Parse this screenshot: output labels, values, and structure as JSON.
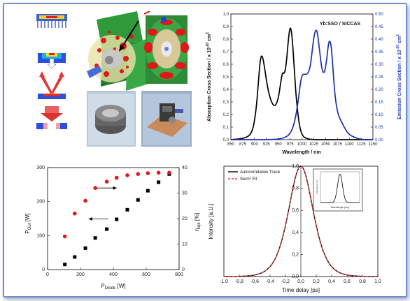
{
  "figure_title": "",
  "spectrum": {
    "label": "Yb:SSO / SICCAS",
    "xlabel": "Wavelength / nm",
    "ylabel_left": "Absorption Cross Section / x 10",
    "ylabel_left_sup": "-20",
    "ylabel_left_unit": " cm",
    "ylabel_left_unit_sup": "2",
    "ylabel_right": "Emission Cross Section / x 10",
    "ylabel_right_sup": "-20",
    "ylabel_right_unit": " cm",
    "ylabel_right_unit_sup": "2"
  },
  "power": {
    "ylabel_left": "P",
    "ylabel_left_sub": "Out",
    "ylabel_left_unit": " [W]",
    "ylabel_right": "η",
    "ylabel_right_sub": "opt",
    "ylabel_right_unit": " [%]",
    "xlabel": "P",
    "xlabel_sub": "Diode",
    "xlabel_unit": " [W]"
  },
  "autocorr": {
    "ylabel": "Intensity [a.U.]",
    "xlabel": "Time delay [ps]",
    "legend_trace": "Autocorrelation Trace",
    "legend_fit": "Sech",
    "legend_fit_sup": "2",
    "legend_fit_end": " Fit",
    "inset_ylabel": "Intensity [a.U.]",
    "inset_xlabel": "Wavelength [nm]"
  },
  "chart_data": [
    {
      "type": "line",
      "x_ticks": [
        850,
        875,
        900,
        925,
        950,
        975,
        1000,
        1025,
        1050,
        1075,
        1100,
        1125,
        1150
      ],
      "y_left_ticks": [
        "0,0",
        "0,1",
        "0,2",
        "0,3",
        "0,4",
        "0,5",
        "0,6",
        "0,7",
        "0,8",
        "0,9",
        "1,0"
      ],
      "y_right_ticks": [
        "0.00",
        "0.05",
        "0.10",
        "0.15",
        "0.20",
        "0.25",
        "0.30",
        "0.35",
        "0.40",
        "0.45",
        "0.50"
      ],
      "xlim": [
        850,
        1150
      ],
      "ylim_left": [
        0,
        1.0
      ],
      "ylim_right": [
        0,
        0.5
      ],
      "series": [
        {
          "color": "#000000",
          "axis": "left",
          "x": [
            850,
            880,
            895,
            903,
            908,
            912,
            916,
            921,
            927,
            935,
            943,
            950,
            955,
            959,
            963,
            967,
            971,
            975,
            979,
            983,
            987,
            991,
            995,
            999,
            1004,
            1010,
            1020,
            1040,
            1060,
            1100,
            1150
          ],
          "y": [
            0.0,
            0.01,
            0.05,
            0.22,
            0.45,
            0.64,
            0.68,
            0.58,
            0.42,
            0.3,
            0.26,
            0.32,
            0.45,
            0.54,
            0.52,
            0.6,
            0.78,
            0.91,
            0.84,
            0.62,
            0.38,
            0.22,
            0.11,
            0.05,
            0.02,
            0.01,
            0.0,
            0.0,
            0.0,
            0.0,
            0.0
          ]
        },
        {
          "color": "#1a2fb5",
          "axis": "right",
          "x": [
            850,
            940,
            960,
            975,
            985,
            992,
            997,
            1001,
            1006,
            1012,
            1018,
            1022,
            1027,
            1032,
            1037,
            1042,
            1047,
            1052,
            1057,
            1062,
            1066,
            1070,
            1076,
            1084,
            1092,
            1100,
            1110,
            1125,
            1150
          ],
          "y": [
            0.0,
            0.0,
            0.005,
            0.02,
            0.07,
            0.15,
            0.23,
            0.26,
            0.26,
            0.26,
            0.29,
            0.36,
            0.43,
            0.44,
            0.36,
            0.28,
            0.26,
            0.31,
            0.4,
            0.38,
            0.27,
            0.17,
            0.1,
            0.07,
            0.04,
            0.02,
            0.01,
            0.0,
            0.0
          ]
        }
      ]
    },
    {
      "type": "scatter",
      "x_ticks": [
        0,
        200,
        400,
        600,
        800
      ],
      "y_left_ticks": [
        0,
        100,
        200,
        300
      ],
      "y_right_ticks": [
        0,
        10,
        20,
        30,
        40
      ],
      "xlim": [
        0,
        800
      ],
      "ylim_left": [
        0,
        300
      ],
      "ylim_right": [
        0,
        40
      ],
      "series": [
        {
          "color": "#000000",
          "marker": "square",
          "axis": "left",
          "x": [
            105,
            165,
            230,
            290,
            360,
            420,
            485,
            550,
            610,
            675,
            740
          ],
          "y": [
            15,
            37,
            63,
            93,
            119,
            148,
            176,
            205,
            232,
            257,
            281
          ]
        },
        {
          "color": "#e01818",
          "marker": "circle",
          "axis": "right",
          "x": [
            105,
            165,
            230,
            290,
            360,
            420,
            485,
            550,
            610,
            675,
            740
          ],
          "y": [
            13,
            22,
            27,
            32,
            34.5,
            36,
            37,
            37.5,
            37.8,
            38,
            38
          ]
        }
      ],
      "arrows": [
        {
          "from_x": 300,
          "y_axis": "right",
          "y": 32,
          "to_x": 420
        },
        {
          "from_x": 370,
          "y_axis": "left",
          "y": 149,
          "to_x": 250
        }
      ]
    },
    {
      "type": "line",
      "x_ticks": [
        "-1,0",
        "-0,8",
        "-0,6",
        "-0,4",
        "-0,2",
        "0,0",
        "0,2",
        "0,4",
        "0,6",
        "0,8",
        "1,0"
      ],
      "y_ticks": [
        "0,0",
        "0,2",
        "0,4",
        "0,6",
        "0,8",
        "1,0"
      ],
      "xlim": [
        -1.0,
        1.0
      ],
      "ylim": [
        0,
        1.0
      ],
      "series": [
        {
          "color": "#000000",
          "style": "solid",
          "fn": "sech2",
          "x0": 0,
          "width": 0.29
        },
        {
          "color": "#d83a3a",
          "style": "dashed",
          "fn": "sech2",
          "x0": 0,
          "width": 0.29
        }
      ],
      "inset": {
        "type": "line",
        "peak_x": 0.5,
        "width": 0.09
      }
    }
  ]
}
